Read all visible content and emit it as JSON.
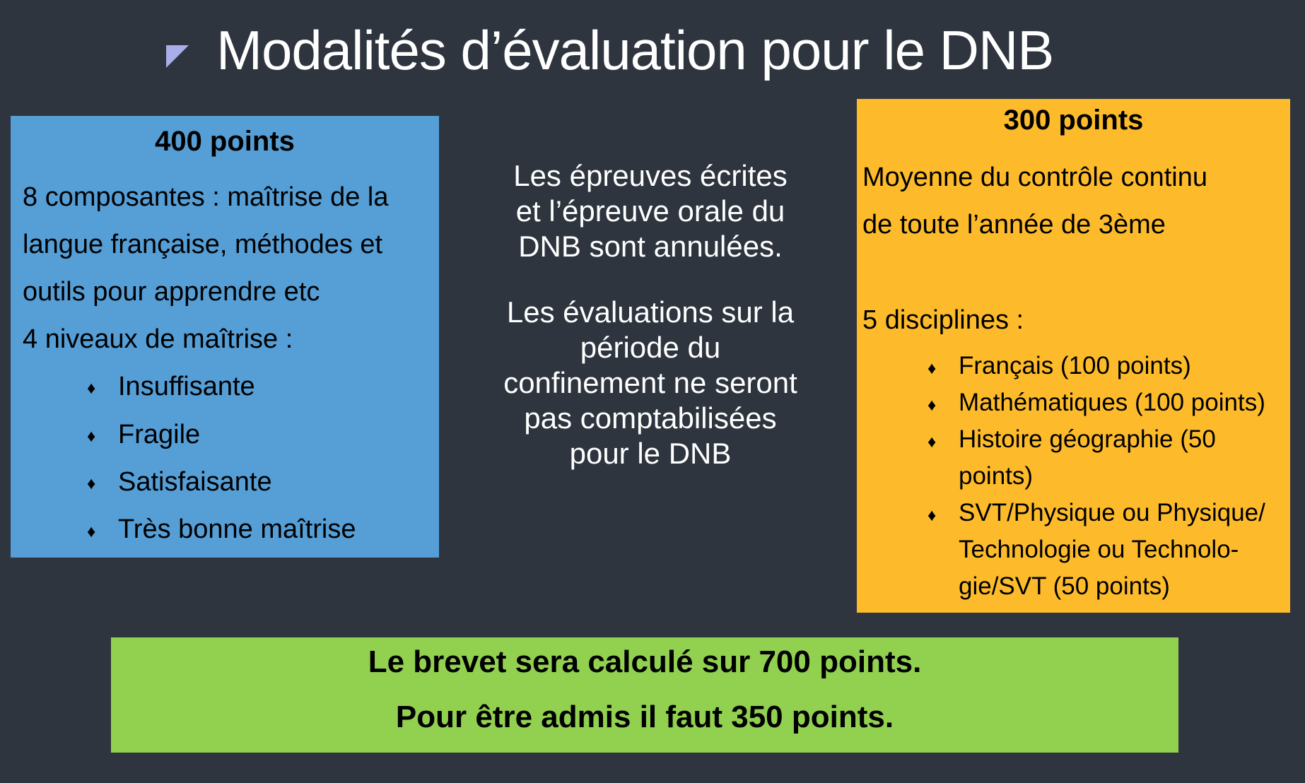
{
  "title": "Modalités d’évaluation pour le DNB",
  "left_box": {
    "heading": "400 points",
    "lines": [
      "8 composantes : maîtrise de la",
      "langue française, méthodes et",
      "outils pour apprendre etc",
      "4 niveaux de maîtrise :"
    ],
    "levels": [
      "Insuffisante",
      "Fragile",
      "Satisfaisante",
      "Très bonne maîtrise"
    ]
  },
  "center": {
    "paragraph1": [
      "Les épreuves écrites",
      "et l’épreuve orale du",
      "DNB sont annulées."
    ],
    "paragraph2": [
      "Les évaluations sur la",
      "période du",
      "confinement ne seront",
      "pas comptabilisées",
      "pour le DNB"
    ]
  },
  "right_box": {
    "heading": "300 points",
    "lines": [
      "Moyenne du contrôle continu",
      "de toute l’année de 3ème"
    ],
    "disciplines_label": "5 disciplines :",
    "disciplines": [
      [
        "Français (100 points)"
      ],
      [
        "Mathématiques (100 points)"
      ],
      [
        "Histoire géographie (50",
        "points)"
      ],
      [
        "SVT/Physique ou Physique/",
        "Technologie ou Technolo-",
        "gie/SVT (50 points)"
      ]
    ]
  },
  "bottom": {
    "line1": "Le brevet sera calculé sur 700 points.",
    "line2": "Pour être admis il faut 350 points."
  },
  "colors": {
    "background": "#2e353f",
    "blue": "#559ed6",
    "orange": "#fdbb2b",
    "green": "#92d050",
    "bullet": "#a9aee8"
  }
}
